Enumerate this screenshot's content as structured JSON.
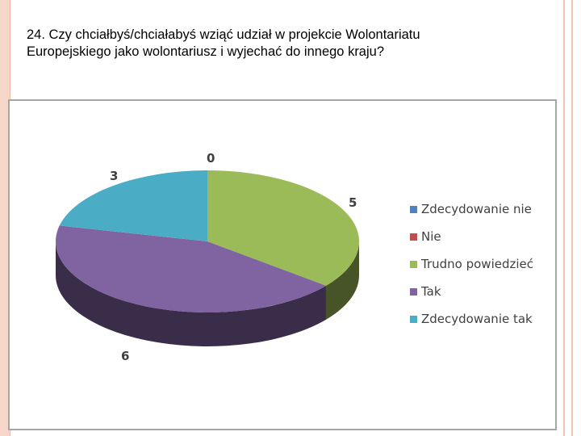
{
  "question": {
    "line1": "24. Czy chciałbyś/chciałabyś wziąć udział w projekcie Wolontariatu",
    "line2": "Europejskiego jako wolontariusz i wyjechać do innego kraju?"
  },
  "chart_data": {
    "type": "pie",
    "style": "3d",
    "categories": [
      "Zdecydowanie nie",
      "Nie",
      "Trudno powiedzieć",
      "Tak",
      "Zdecydowanie tak"
    ],
    "values": [
      0,
      0,
      5,
      6,
      3
    ],
    "data_labels": [
      "0",
      "",
      "5",
      "6",
      "3"
    ],
    "colors": [
      "#4f81bd",
      "#c0504d",
      "#9bbb59",
      "#8064a2",
      "#4bacc6"
    ],
    "legend_position": "right"
  }
}
